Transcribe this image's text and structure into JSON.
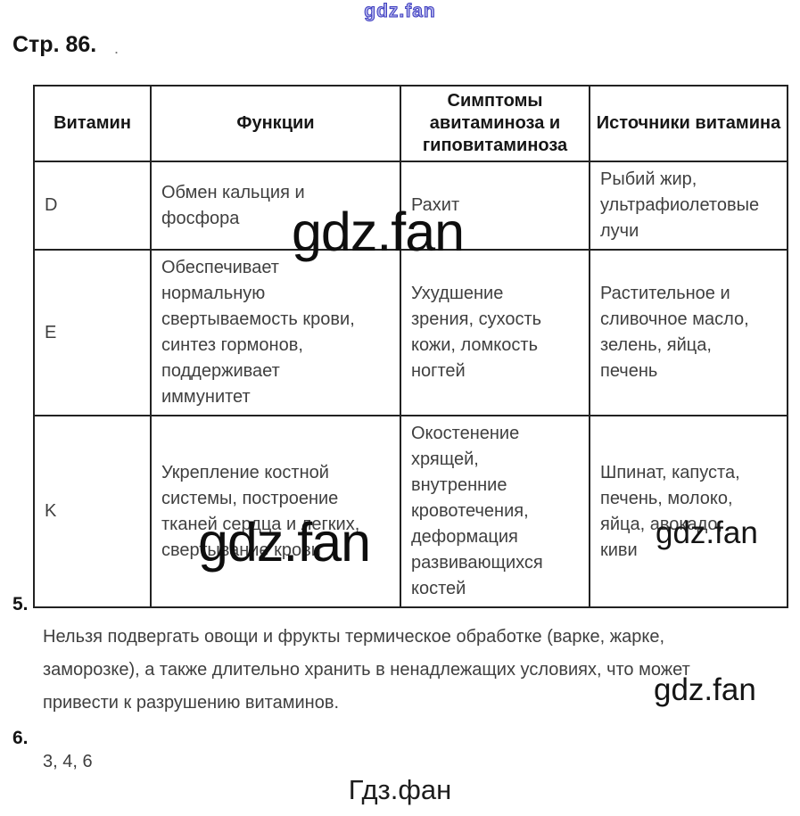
{
  "page": {
    "heading": "Стр. 86.",
    "stray_dot": ".",
    "footer": "Гдз.фан"
  },
  "watermarks": {
    "top": "gdz.fan",
    "big1": "gdz.fan",
    "big2": "gdz.fan",
    "small_table": "gdz.fan",
    "small_section5": "gdz.fan"
  },
  "table": {
    "headers": [
      "Витамин",
      "Функции",
      "Симптомы авитаминоза и гиповитаминоза",
      "Источники витамина"
    ],
    "rows": [
      {
        "vitamin": "D",
        "functions": "Обмен кальция и\nфосфора",
        "symptoms": "Рахит",
        "sources": "Рыбий жир,\nультрафиолетовые\nлучи"
      },
      {
        "vitamin": "E",
        "functions": "Обеспечивает\nнормальную\nсвертываемость крови,\nсинтез гормонов,\nподдерживает\nиммунитет",
        "symptoms": "Ухудшение\nзрения, сухость\nкожи, ломкость\nногтей",
        "sources": "Растительное и\nсливочное масло,\nзелень, яйца,\nпечень"
      },
      {
        "vitamin": "K",
        "functions": "Укрепление костной\nсистемы, построение\nтканей сердца и легких,\nсвертывание крови",
        "symptoms": "Окостенение\nхрящей,\nвнутренние\nкровотечения,\nдеформация\nразвивающихся\nкостей",
        "sources": "Шпинат, капуста,\nпечень, молоко,\nяйца, авокадо,\nкиви"
      }
    ]
  },
  "sections": {
    "s5_number": "5.",
    "s5_text": "Нельзя подвергать овощи и фрукты термическое обработке (варке, жарке,\nзаморозке), а также длительно хранить в ненадлежащих условиях, что может\nпривести к разрушению витаминов.",
    "s6_number": "6.",
    "s6_text": "3, 4, 6"
  },
  "colors": {
    "watermark_blue": "#3c3cc0",
    "text": "#3f3f3f",
    "border": "#222222",
    "background": "#ffffff"
  }
}
